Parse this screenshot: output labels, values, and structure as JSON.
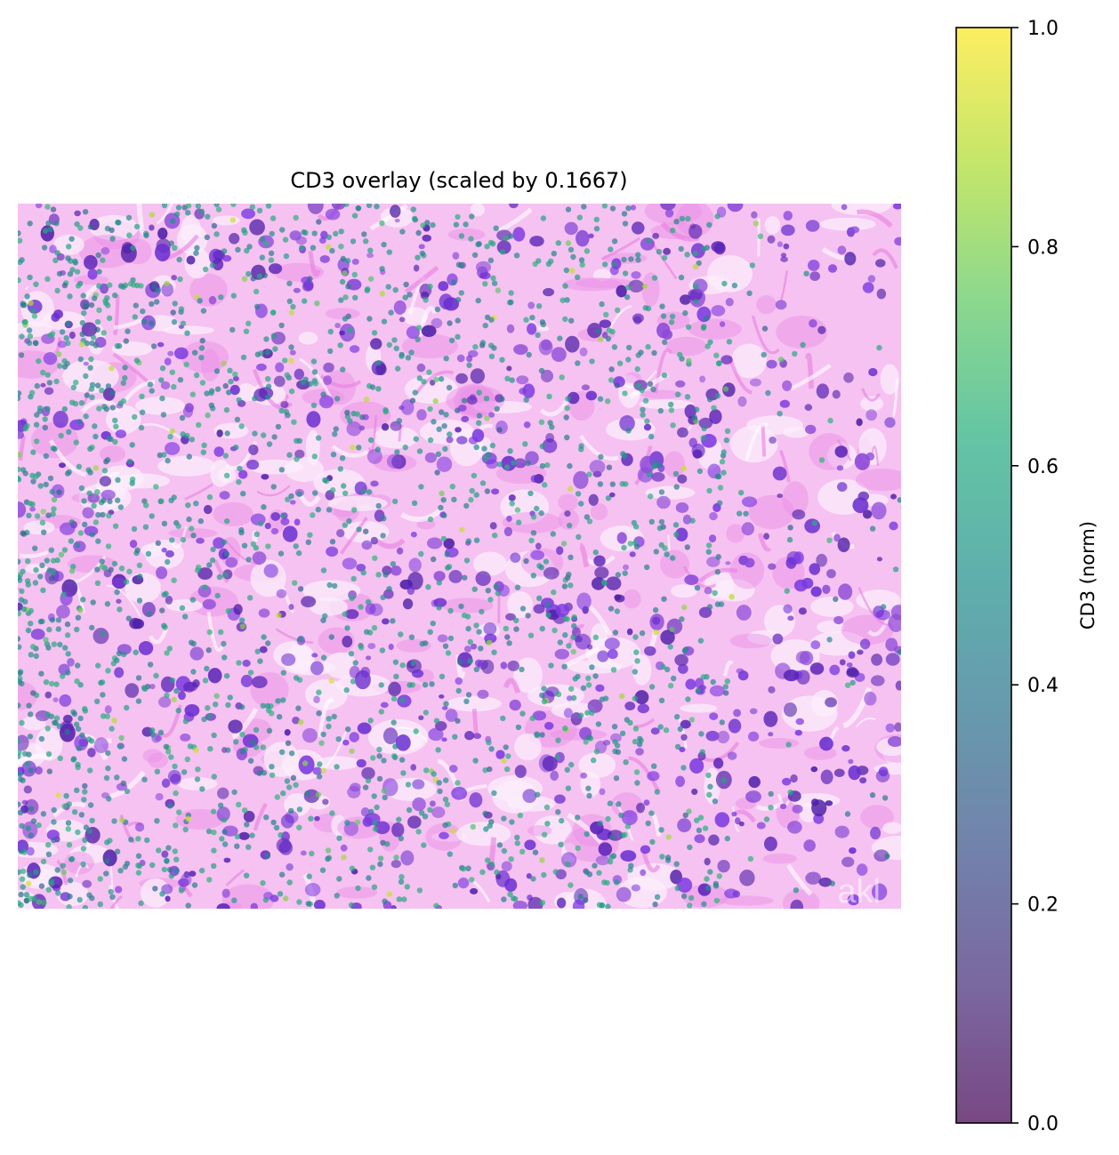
{
  "chart_data": {
    "type": "scatter",
    "title": "CD3 overlay (scaled by 0.1667)",
    "background": "H&E stained tissue image (magenta stroma, purple nuclei)",
    "colormap": "viridis",
    "point_alpha": 0.7,
    "colorbar": {
      "label": "CD3 (norm)",
      "range": [
        0.0,
        1.0
      ],
      "ticks": [
        "0.0",
        "0.2",
        "0.4",
        "0.6",
        "0.8",
        "1.0"
      ],
      "tick_values": [
        0.0,
        0.2,
        0.4,
        0.6,
        0.8,
        1.0
      ]
    },
    "value_distribution": "most points 0.4-0.65, few up to ~0.95",
    "axes_visible": false,
    "watermark": "akl..."
  },
  "colors": {
    "stroma": "#f2a6ef",
    "nucleus": "#6a2fd0",
    "background_light": "#faf0fb"
  }
}
